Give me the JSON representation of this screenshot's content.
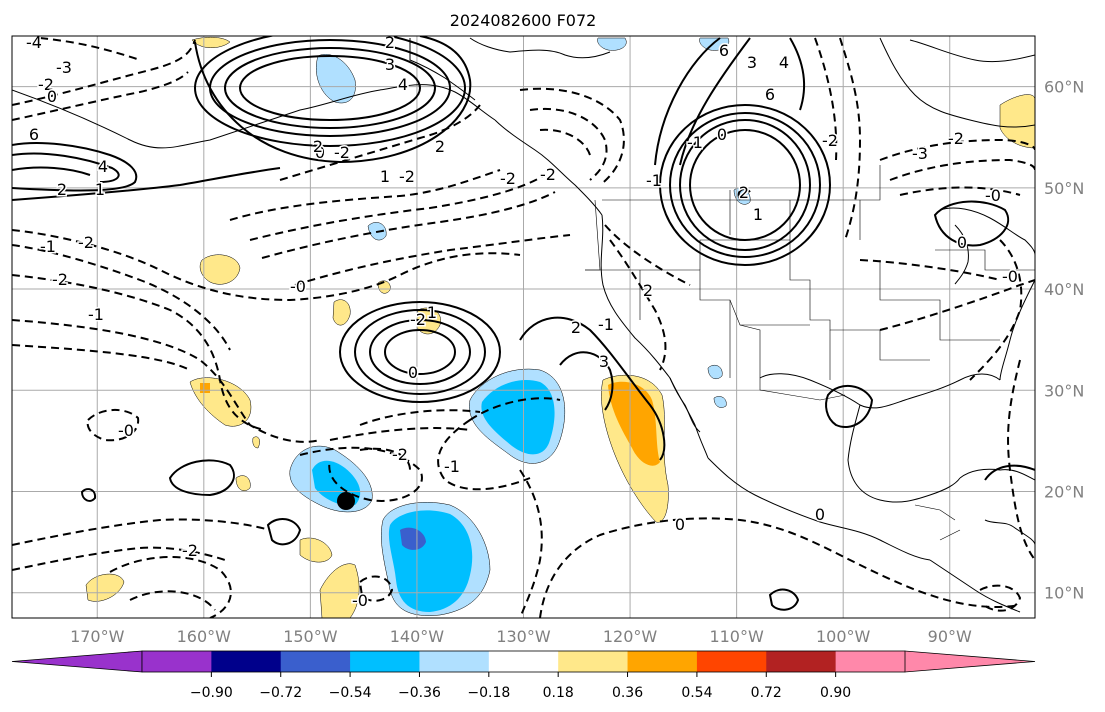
{
  "title": "2024082600 F072",
  "map": {
    "projection": "equirectangular",
    "lon_range": [
      -178,
      -82
    ],
    "lat_range": [
      7.5,
      65
    ],
    "lon_ticks": [
      "170°W",
      "160°W",
      "150°W",
      "140°W",
      "130°W",
      "120°W",
      "110°W",
      "100°W",
      "90°W"
    ],
    "lat_ticks": [
      "60°N",
      "50°N",
      "40°N",
      "30°N",
      "20°N",
      "10°N"
    ],
    "grid": true,
    "contour_style": {
      "positive": "solid black",
      "negative": "dashed black"
    }
  },
  "contour_labels": [
    "2",
    "3",
    "4",
    "-4",
    "-3",
    "-2",
    "0",
    "6",
    "4",
    "2",
    "1",
    "0",
    "-2",
    "2",
    "1",
    "-2",
    "2",
    "-2",
    "-1",
    "-0",
    "-2",
    "-1",
    "-2",
    "1",
    "0",
    "2",
    "-1",
    "3",
    "-0",
    "-2",
    "-2",
    "-2",
    "2",
    "-1",
    "0",
    "-1",
    "1",
    "2",
    "3",
    "6",
    "4",
    "6",
    "-2",
    "-3",
    "-2",
    "-0",
    "0",
    "-0",
    "0",
    "-0",
    "-2",
    "-1",
    "0"
  ],
  "colorbar": {
    "ticks": [
      "−0.90",
      "−0.72",
      "−0.54",
      "−0.36",
      "−0.18",
      "0.18",
      "0.36",
      "0.54",
      "0.72",
      "0.90"
    ],
    "colors": [
      "#9932cc",
      "#9932cc",
      "#00008b",
      "#3a5fcd",
      "#00bfff",
      "#b0e0ff",
      "#ffffff",
      "#ffe88a",
      "#ffa500",
      "#ff4500",
      "#b22222",
      "#ff88aa",
      "#ff88aa"
    ]
  }
}
